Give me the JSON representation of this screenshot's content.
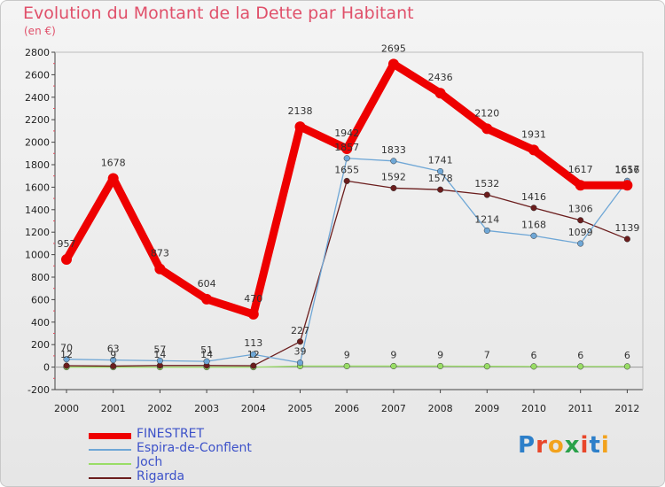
{
  "title": "Evolution du Montant de la Dette par Habitant",
  "unit": "(en €)",
  "logo": {
    "letters": [
      "P",
      "r",
      "o",
      "x",
      "i",
      "t",
      "i"
    ],
    "colors": [
      "#2d7fc9",
      "#e8462a",
      "#f2a21d",
      "#2aa14a",
      "#e8462a",
      "#2d7fc9",
      "#f2a21d"
    ]
  },
  "chart_data": {
    "type": "line",
    "x": [
      "2000",
      "2001",
      "2002",
      "2003",
      "2004",
      "2005",
      "2006",
      "2007",
      "2008",
      "2009",
      "2010",
      "2011",
      "2012"
    ],
    "ylim": [
      -200,
      2800
    ],
    "yticks": [
      "-200",
      "0",
      "200",
      "400",
      "600",
      "800",
      "1000",
      "1200",
      "1400",
      "1600",
      "1800",
      "2000",
      "2200",
      "2400",
      "2600",
      "2800"
    ],
    "grid": false,
    "legend_position": "bottom-left",
    "series": [
      {
        "name": "FINESTRET",
        "color": "#ee0000",
        "values": [
          957,
          1678,
          873,
          604,
          470,
          2138,
          1942,
          2695,
          2436,
          2120,
          1931,
          1617,
          1617
        ],
        "labels": [
          "957",
          "1678",
          "873",
          "604",
          "470",
          "2138",
          "1942",
          "2695",
          "2436",
          "2120",
          "1931",
          "1617",
          "1617"
        ]
      },
      {
        "name": "Espira-de-Conflent",
        "color": "#6fa7d6",
        "values": [
          70,
          63,
          57,
          51,
          113,
          39,
          1857,
          1833,
          1741,
          1214,
          1168,
          1099,
          1656
        ],
        "labels": [
          "70",
          "63",
          "57",
          "51",
          "113",
          "39",
          "1857",
          "1833",
          "1741",
          "1214",
          "1168",
          "1099",
          "1656"
        ]
      },
      {
        "name": "Joch",
        "color": "#99dd66",
        "values": [
          0,
          0,
          0,
          0,
          0,
          9,
          9,
          9,
          9,
          7,
          6,
          6,
          6
        ],
        "labels": [
          "",
          "",
          "",
          "",
          "",
          "",
          "9",
          "9",
          "9",
          "7",
          "6",
          "6",
          "6"
        ]
      },
      {
        "name": "Rigarda",
        "color": "#6b1d1d",
        "values": [
          12,
          9,
          14,
          14,
          12,
          227,
          1655,
          1592,
          1578,
          1532,
          1416,
          1306,
          1139
        ],
        "labels": [
          "12",
          "9",
          "14",
          "14",
          "12",
          "227",
          "1655",
          "1592",
          "1578",
          "1532",
          "1416",
          "1306",
          "1139"
        ]
      }
    ]
  }
}
